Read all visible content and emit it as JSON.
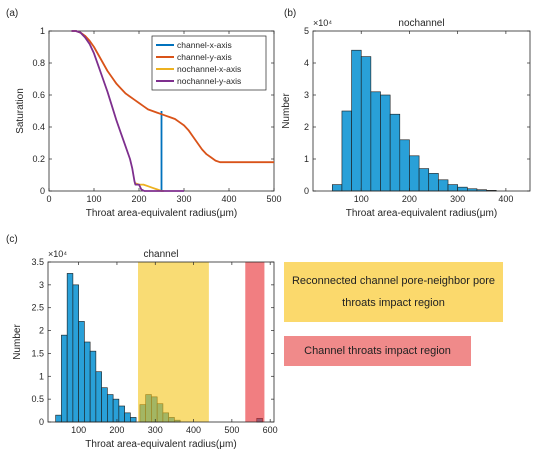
{
  "panel_labels": {
    "a": "(a)",
    "b": "(b)",
    "c": "(c)"
  },
  "annotations": {
    "yellow_box": "Reconnected channel pore-neighbor pore throats impact region",
    "red_box": "Channel throats impact region",
    "yellow_color": "#fbd96c",
    "red_color": "#f08a8a"
  },
  "chart_data": [
    {
      "type": "line",
      "panel": "(a)",
      "xlabel": "Throat area-equivalent radius(μm)",
      "ylabel": "Saturation",
      "xlim": [
        0,
        500
      ],
      "ylim": [
        0,
        1
      ],
      "xticks": [
        0,
        100,
        200,
        300,
        400,
        500
      ],
      "yticks": [
        0,
        0.2,
        0.4,
        0.6,
        0.8,
        1
      ],
      "legend_position": "top-right",
      "grid": false,
      "series": [
        {
          "name": "channel-x-axis",
          "color": "#0072bd",
          "x": [
            250,
            250
          ],
          "y": [
            0.5,
            0.0
          ]
        },
        {
          "name": "channel-y-axis",
          "color": "#d95319",
          "x": [
            50,
            60,
            70,
            80,
            90,
            100,
            110,
            120,
            130,
            140,
            150,
            160,
            170,
            180,
            190,
            200,
            210,
            220,
            230,
            240,
            250,
            260,
            270,
            280,
            290,
            300,
            310,
            320,
            330,
            340,
            350,
            360,
            370,
            380,
            400,
            420,
            450,
            500
          ],
          "y": [
            1.0,
            1.0,
            0.99,
            0.97,
            0.94,
            0.9,
            0.85,
            0.8,
            0.75,
            0.71,
            0.67,
            0.64,
            0.61,
            0.59,
            0.57,
            0.55,
            0.53,
            0.51,
            0.5,
            0.49,
            0.48,
            0.47,
            0.46,
            0.45,
            0.43,
            0.41,
            0.38,
            0.34,
            0.3,
            0.26,
            0.23,
            0.21,
            0.19,
            0.18,
            0.18,
            0.18,
            0.18,
            0.18
          ]
        },
        {
          "name": "nochannel-x-axis",
          "color": "#edb120",
          "x": [
            190,
            200,
            210,
            220,
            230,
            240,
            250,
            255
          ],
          "y": [
            0.05,
            0.04,
            0.04,
            0.03,
            0.02,
            0.01,
            0.0,
            0.0
          ]
        },
        {
          "name": "nochannel-y-axis",
          "color": "#7e2f8e",
          "x": [
            50,
            60,
            70,
            80,
            90,
            100,
            110,
            120,
            130,
            140,
            150,
            160,
            170,
            180,
            185,
            190,
            192,
            200,
            205,
            212,
            300
          ],
          "y": [
            1.0,
            1.0,
            0.99,
            0.96,
            0.92,
            0.86,
            0.78,
            0.7,
            0.62,
            0.53,
            0.44,
            0.36,
            0.28,
            0.2,
            0.14,
            0.06,
            0.04,
            0.04,
            0.01,
            0.0,
            0.0
          ]
        }
      ]
    },
    {
      "type": "bar",
      "panel": "(b)",
      "title": "nochannel",
      "xlabel": "Throat area-equivalent radius(μm)",
      "ylabel": "Number",
      "exponent_label": "×10⁴",
      "xlim": [
        0,
        450
      ],
      "ylim": [
        0,
        5
      ],
      "xticks": [
        100,
        200,
        300,
        400
      ],
      "yticks": [
        0,
        1,
        2,
        3,
        4,
        5
      ],
      "bar_color": "#29a0d8",
      "bins": [
        {
          "x0": 40,
          "x1": 60,
          "value": 0.2
        },
        {
          "x0": 60,
          "x1": 80,
          "value": 2.5
        },
        {
          "x0": 80,
          "x1": 100,
          "value": 4.4
        },
        {
          "x0": 100,
          "x1": 120,
          "value": 4.2
        },
        {
          "x0": 120,
          "x1": 140,
          "value": 3.1
        },
        {
          "x0": 140,
          "x1": 160,
          "value": 3.0
        },
        {
          "x0": 160,
          "x1": 180,
          "value": 2.4
        },
        {
          "x0": 180,
          "x1": 200,
          "value": 1.6
        },
        {
          "x0": 200,
          "x1": 220,
          "value": 1.1
        },
        {
          "x0": 220,
          "x1": 240,
          "value": 0.7
        },
        {
          "x0": 240,
          "x1": 260,
          "value": 0.55
        },
        {
          "x0": 260,
          "x1": 280,
          "value": 0.35
        },
        {
          "x0": 280,
          "x1": 300,
          "value": 0.2
        },
        {
          "x0": 300,
          "x1": 320,
          "value": 0.12
        },
        {
          "x0": 320,
          "x1": 340,
          "value": 0.07
        },
        {
          "x0": 340,
          "x1": 360,
          "value": 0.04
        },
        {
          "x0": 360,
          "x1": 380,
          "value": 0.02
        }
      ]
    },
    {
      "type": "bar",
      "panel": "(c)",
      "title": "channel",
      "xlabel": "Throat area-equivalent radius(μm)",
      "ylabel": "Number",
      "exponent_label": "×10⁴",
      "xlim": [
        20,
        610
      ],
      "ylim": [
        0,
        3.5
      ],
      "xticks": [
        100,
        200,
        300,
        400,
        500,
        600
      ],
      "yticks": [
        0,
        0.5,
        1,
        1.5,
        2,
        2.5,
        3,
        3.5
      ],
      "bar_color": "#29a0d8",
      "regions": [
        {
          "x0": 255,
          "x1": 440,
          "color": "#f5c518",
          "opacity": 0.6
        },
        {
          "x0": 535,
          "x1": 585,
          "color": "#e8282d",
          "opacity": 0.6
        }
      ],
      "bins": [
        {
          "x0": 40,
          "x1": 55,
          "value": 0.15
        },
        {
          "x0": 55,
          "x1": 70,
          "value": 1.9
        },
        {
          "x0": 70,
          "x1": 85,
          "value": 3.25
        },
        {
          "x0": 85,
          "x1": 100,
          "value": 3.0
        },
        {
          "x0": 100,
          "x1": 115,
          "value": 2.2
        },
        {
          "x0": 115,
          "x1": 130,
          "value": 1.75
        },
        {
          "x0": 130,
          "x1": 145,
          "value": 1.55
        },
        {
          "x0": 145,
          "x1": 160,
          "value": 1.1
        },
        {
          "x0": 160,
          "x1": 175,
          "value": 0.75
        },
        {
          "x0": 175,
          "x1": 190,
          "value": 0.6
        },
        {
          "x0": 190,
          "x1": 205,
          "value": 0.5
        },
        {
          "x0": 205,
          "x1": 220,
          "value": 0.35
        },
        {
          "x0": 220,
          "x1": 235,
          "value": 0.2
        },
        {
          "x0": 235,
          "x1": 250,
          "value": 0.1
        },
        {
          "x0": 260,
          "x1": 275,
          "value": 0.38
        },
        {
          "x0": 275,
          "x1": 290,
          "value": 0.6
        },
        {
          "x0": 290,
          "x1": 305,
          "value": 0.55
        },
        {
          "x0": 305,
          "x1": 320,
          "value": 0.4
        },
        {
          "x0": 320,
          "x1": 335,
          "value": 0.2
        },
        {
          "x0": 335,
          "x1": 350,
          "value": 0.1
        },
        {
          "x0": 350,
          "x1": 365,
          "value": 0.04
        },
        {
          "x0": 565,
          "x1": 580,
          "value": 0.08
        }
      ]
    }
  ]
}
